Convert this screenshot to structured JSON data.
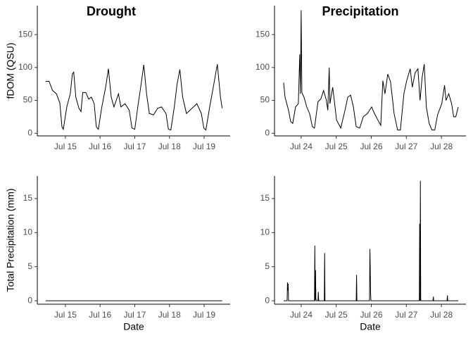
{
  "chart_data": [
    {
      "type": "line",
      "title": "Drought",
      "y_label": "fDOM (QSU)",
      "color": "#000000",
      "x": [
        14.43,
        14.53,
        14.63,
        14.74,
        14.84,
        14.9,
        14.94,
        15.04,
        15.14,
        15.2,
        15.24,
        15.3,
        15.39,
        15.45,
        15.5,
        15.59,
        15.67,
        15.75,
        15.83,
        15.89,
        15.95,
        16.05,
        16.16,
        16.24,
        16.32,
        16.4,
        16.53,
        16.6,
        16.72,
        16.84,
        16.92,
        17.0,
        17.1,
        17.17,
        17.26,
        17.34,
        17.42,
        17.54,
        17.66,
        17.77,
        17.9,
        17.97,
        18.04,
        18.14,
        18.22,
        18.3,
        18.38,
        18.49,
        18.63,
        18.79,
        18.92,
        18.99,
        19.05,
        19.16,
        19.28,
        19.38,
        19.47,
        19.52
      ],
      "values": [
        79,
        79,
        65,
        60,
        46,
        10,
        6,
        40,
        60,
        90,
        93,
        55,
        38,
        33,
        62,
        62,
        52,
        55,
        45,
        10,
        6,
        40,
        70,
        98,
        55,
        40,
        60,
        40,
        45,
        35,
        8,
        6,
        45,
        70,
        104,
        60,
        30,
        28,
        38,
        40,
        30,
        6,
        5,
        40,
        75,
        97,
        55,
        30,
        37,
        45,
        30,
        8,
        5,
        40,
        75,
        105,
        55,
        38
      ],
      "xlim": [
        14.19,
        19.75
      ],
      "xticks": [
        {
          "value": 15,
          "label": "Jul 15"
        },
        {
          "value": 16,
          "label": "Jul 16"
        },
        {
          "value": 17,
          "label": "Jul 17"
        },
        {
          "value": 18,
          "label": "Jul 18"
        },
        {
          "value": 19,
          "label": "Jul 19"
        }
      ],
      "ylim": [
        -4,
        194
      ],
      "yticks": [
        0,
        50,
        100,
        150
      ]
    },
    {
      "type": "line",
      "title": "Precipitation",
      "color": "#000000",
      "x": [
        23.5,
        23.54,
        23.64,
        23.7,
        23.76,
        23.84,
        23.92,
        23.96,
        23.98,
        24.0,
        24.02,
        24.08,
        24.16,
        24.24,
        24.32,
        24.38,
        24.48,
        24.56,
        24.64,
        24.72,
        24.76,
        24.8,
        24.82,
        24.9,
        25.01,
        25.13,
        25.25,
        25.33,
        25.41,
        25.49,
        25.57,
        25.67,
        25.77,
        25.89,
        26.01,
        26.09,
        26.21,
        26.27,
        26.33,
        26.39,
        26.47,
        26.55,
        26.65,
        26.75,
        26.83,
        26.93,
        27.01,
        27.11,
        27.17,
        27.25,
        27.33,
        27.39,
        27.45,
        27.51,
        27.57,
        27.65,
        27.73,
        27.81,
        27.89,
        28.01,
        28.09,
        28.13,
        28.21,
        28.29,
        28.35,
        28.41,
        28.48
      ],
      "values": [
        77,
        55,
        35,
        18,
        15,
        40,
        45,
        120,
        60,
        187,
        62,
        55,
        40,
        30,
        10,
        8,
        48,
        52,
        65,
        50,
        35,
        100,
        45,
        70,
        20,
        8,
        35,
        55,
        58,
        40,
        10,
        8,
        25,
        30,
        40,
        30,
        18,
        12,
        80,
        60,
        90,
        78,
        30,
        5,
        5,
        60,
        80,
        98,
        70,
        92,
        98,
        50,
        85,
        105,
        40,
        15,
        5,
        5,
        28,
        45,
        73,
        50,
        60,
        45,
        25,
        25,
        40
      ],
      "xlim": [
        23.24,
        28.7
      ],
      "xticks": [
        {
          "value": 24,
          "label": "Jul 24"
        },
        {
          "value": 25,
          "label": "Jul 25"
        },
        {
          "value": 26,
          "label": "Jul 26"
        },
        {
          "value": 27,
          "label": "Jul 27"
        },
        {
          "value": 28,
          "label": "Jul 28"
        }
      ],
      "ylim": [
        -4,
        194
      ],
      "yticks": [
        0,
        50,
        100,
        150
      ]
    },
    {
      "type": "line",
      "y_label": "Total Precipitation (mm)",
      "x_label": "Date",
      "color": "#000000",
      "x": [
        14.43,
        19.52
      ],
      "values": [
        0,
        0
      ],
      "xlim": [
        14.19,
        19.75
      ],
      "xticks": [
        {
          "value": 15,
          "label": "Jul 15"
        },
        {
          "value": 16,
          "label": "Jul 16"
        },
        {
          "value": 17,
          "label": "Jul 17"
        },
        {
          "value": 18,
          "label": "Jul 18"
        },
        {
          "value": 19,
          "label": "Jul 19"
        }
      ],
      "ylim": [
        -0.5,
        18.3
      ],
      "yticks": [
        0,
        5,
        10,
        15
      ]
    },
    {
      "type": "line",
      "x_label": "Date",
      "color": "#000000",
      "x": [
        23.5,
        23.6,
        23.61,
        23.62,
        23.63,
        23.64,
        24.38,
        24.39,
        24.4,
        24.41,
        24.42,
        24.43,
        24.48,
        24.49,
        24.5,
        24.66,
        24.67,
        24.68,
        25.57,
        25.58,
        25.59,
        25.95,
        25.96,
        25.97,
        25.98,
        25.99,
        27.37,
        27.38,
        27.39,
        27.4,
        27.41,
        27.42,
        27.76,
        27.77,
        27.78,
        28.16,
        28.17,
        28.18,
        28.48
      ],
      "values": [
        0,
        0,
        2.7,
        1.5,
        2.5,
        0,
        0,
        8.1,
        0,
        4.5,
        0.3,
        0,
        0,
        1.3,
        0,
        0,
        7.0,
        0,
        0,
        3.8,
        0,
        0,
        7.6,
        5.0,
        1.2,
        0,
        0,
        11.3,
        0,
        17.6,
        0,
        0,
        0,
        0.6,
        0,
        0,
        0.8,
        0,
        0
      ],
      "xlim": [
        23.24,
        28.7
      ],
      "xticks": [
        {
          "value": 24,
          "label": "Jul 24"
        },
        {
          "value": 25,
          "label": "Jul 25"
        },
        {
          "value": 26,
          "label": "Jul 26"
        },
        {
          "value": 27,
          "label": "Jul 27"
        },
        {
          "value": 28,
          "label": "Jul 28"
        }
      ],
      "ylim": [
        -0.5,
        18.3
      ],
      "yticks": [
        0,
        5,
        10,
        15
      ]
    }
  ]
}
